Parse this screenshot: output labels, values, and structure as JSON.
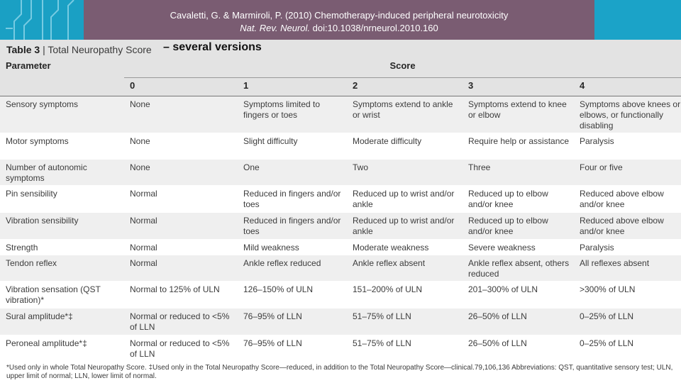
{
  "banner": {
    "line1": "Cavaletti, G. & Marmiroli, P. (2010) Chemotherapy-induced peripheral neurotoxicity",
    "line2_journal": "Nat. Rev. Neurol.",
    "line2_doi": " doi:10.1038/nrneurol.2010.160"
  },
  "table": {
    "title_label": "Table 3",
    "title_sep": " | ",
    "title_name": "Total Neuropathy Score",
    "overlay_text": "– several versions",
    "parameter_header": "Parameter",
    "score_header": "Score",
    "score_columns": [
      "0",
      "1",
      "2",
      "3",
      "4"
    ],
    "rows": [
      {
        "param": "Sensory symptoms",
        "s0": "None",
        "s1": "Symptoms limited to fingers or toes",
        "s2": "Symptoms extend to ankle or wrist",
        "s3": "Symptoms extend to knee or elbow",
        "s4": "Symptoms above knees or elbows, or functionally disabling"
      },
      {
        "param": "Motor symptoms",
        "s0": "None",
        "s1": "Slight difficulty",
        "s2": "Moderate difficulty",
        "s3": "Require help or assistance",
        "s4": "Paralysis"
      },
      {
        "param": "Number of autonomic symptoms",
        "s0": "None",
        "s1": "One",
        "s2": "Two",
        "s3": "Three",
        "s4": "Four or five"
      },
      {
        "param": "Pin sensibility",
        "s0": "Normal",
        "s1": "Reduced in fingers and/or toes",
        "s2": "Reduced up to wrist and/or ankle",
        "s3": "Reduced up to elbow and/or knee",
        "s4": "Reduced above elbow and/or knee"
      },
      {
        "param": "Vibration sensibility",
        "s0": "Normal",
        "s1": "Reduced in fingers and/or toes",
        "s2": "Reduced up to wrist and/or ankle",
        "s3": "Reduced up to elbow and/or knee",
        "s4": "Reduced above elbow and/or knee"
      },
      {
        "param": "Strength",
        "s0": "Normal",
        "s1": "Mild weakness",
        "s2": "Moderate weakness",
        "s3": "Severe weakness",
        "s4": "Paralysis"
      },
      {
        "param": "Tendon reflex",
        "s0": "Normal",
        "s1": "Ankle reflex reduced",
        "s2": "Ankle reflex absent",
        "s3": "Ankle reflex absent, others reduced",
        "s4": "All reflexes absent"
      },
      {
        "param": "Vibration sensation (QST vibration)*",
        "s0": "Normal to 125% of ULN",
        "s1": "126–150% of ULN",
        "s2": "151–200% of ULN",
        "s3": "201–300% of ULN",
        "s4": ">300% of ULN"
      },
      {
        "param": "Sural amplitude*‡",
        "s0": "Normal or reduced to <5% of LLN",
        "s1": "76–95% of LLN",
        "s2": "51–75% of LLN",
        "s3": "26–50% of LLN",
        "s4": "0–25% of LLN"
      },
      {
        "param": "Peroneal amplitude*‡",
        "s0": "Normal or reduced to <5% of LLN",
        "s1": "76–95% of LLN",
        "s2": "51–75% of LLN",
        "s3": "26–50% of LLN",
        "s4": "0–25% of LLN"
      }
    ],
    "footnote": "*Used only in whole Total Neuropathy Score. ‡Used only in the Total Neuropathy Score—reduced, in addition to the Total Neuropathy Score—clinical.79,106,136 Abbreviations: QST, quantitative sensory test; ULN, upper limit of normal; LLN, lower limit of normal."
  },
  "colors": {
    "banner": "#7a5c72",
    "accent_teal": "#1aa0c4",
    "header_gray": "#e3e3e3",
    "row_shade": "#efefef"
  }
}
